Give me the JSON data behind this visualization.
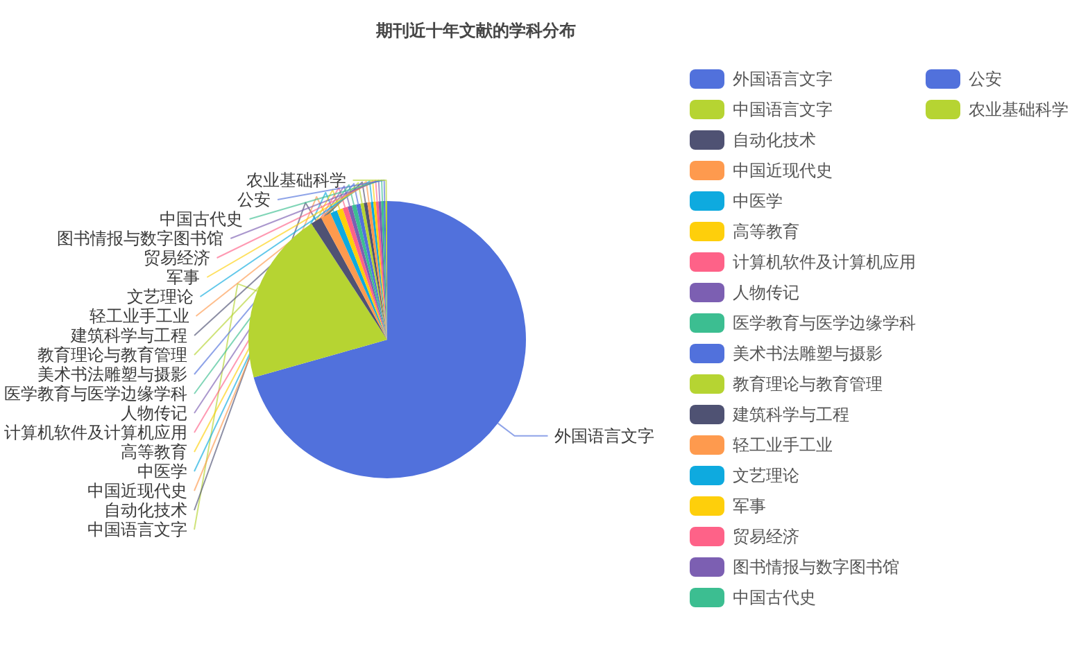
{
  "chart_data": {
    "type": "pie",
    "title": "期刊近十年文献的学科分布",
    "categories": [
      "外国语言文字",
      "中国语言文字",
      "自动化技术",
      "中国近现代史",
      "中医学",
      "高等教育",
      "计算机软件及计算机应用",
      "人物传记",
      "医学教育与医学边缘学科",
      "美术书法雕塑与摄影",
      "教育理论与教育管理",
      "建筑科学与工程",
      "轻工业手工业",
      "文艺理论",
      "军事",
      "贸易经济",
      "图书情报与数字图书馆",
      "中国古代史",
      "公安",
      "农业基础科学"
    ],
    "values": [
      70.6,
      20.2,
      1.3,
      1.2,
      0.8,
      0.7,
      0.6,
      0.5,
      0.5,
      0.5,
      0.4,
      0.4,
      0.4,
      0.3,
      0.3,
      0.3,
      0.3,
      0.3,
      0.2,
      0.2
    ],
    "colors": [
      "#5171dc",
      "#b6d432",
      "#4f5273",
      "#fe9a4e",
      "#0eaadf",
      "#fecf0b",
      "#fe6288",
      "#7c5fb2",
      "#3cbe91",
      "#5171dc",
      "#b6d432",
      "#4f5273",
      "#fe9a4e",
      "#0eaadf",
      "#fecf0b",
      "#fe6288",
      "#7c5fb2",
      "#3cbe91",
      "#5171dc",
      "#b6d432"
    ],
    "legend": "top right"
  }
}
